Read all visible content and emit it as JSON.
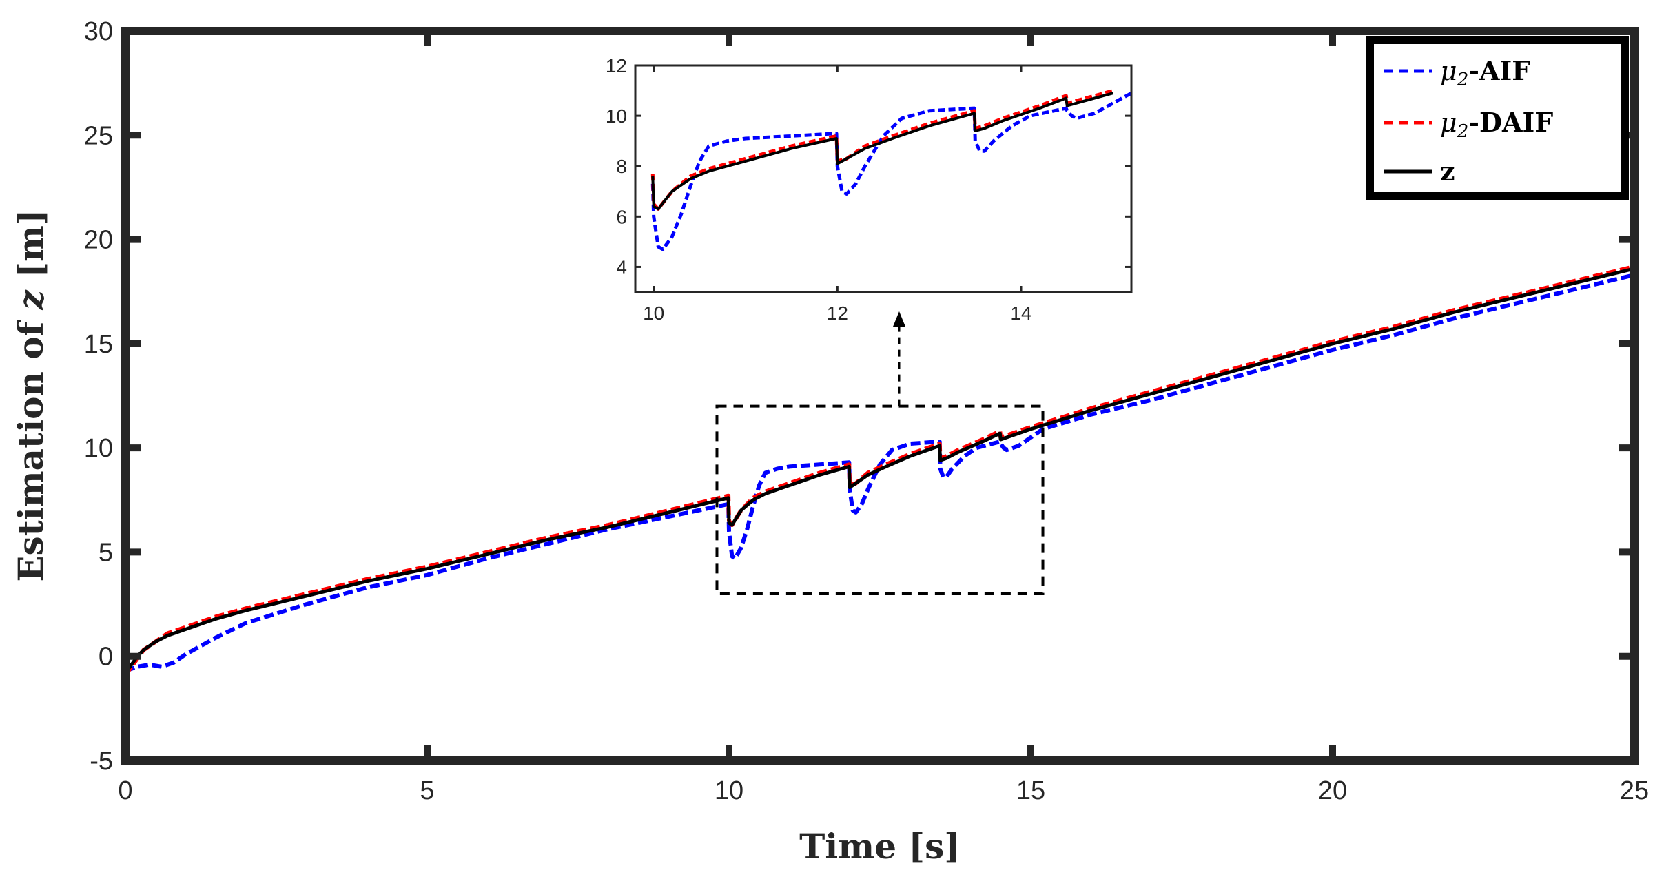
{
  "chart_data": {
    "type": "line",
    "title": "",
    "xlabel": "Time [s]",
    "ylabel_prefix": "Estimation of ",
    "ylabel_var": "z",
    "ylabel_suffix": " [m]",
    "xlim": [
      0,
      25
    ],
    "ylim": [
      -5,
      30
    ],
    "xticks": [
      "0",
      "5",
      "10",
      "15",
      "20",
      "25"
    ],
    "yticks": [
      "-5",
      "0",
      "5",
      "10",
      "15",
      "20",
      "25",
      "30"
    ],
    "grid": false,
    "legend": {
      "placement": "top-right",
      "entries": [
        {
          "sym": "μ",
          "sub": "2",
          "text": "-AIF"
        },
        {
          "sym": "μ",
          "sub": "2",
          "text": "-DAIF"
        },
        {
          "sym": "",
          "sub": "",
          "text": "z"
        }
      ]
    },
    "colors": {
      "aif": "#0000ff",
      "daif": "#ff0000",
      "z": "#000000",
      "axis": "#262626"
    },
    "series": [
      {
        "name": "μ2-AIF",
        "style": "dashed",
        "x": [
          0,
          0.2,
          0.4,
          0.6,
          0.8,
          1.0,
          1.5,
          2.0,
          3.0,
          4.0,
          5.0,
          6.0,
          7.0,
          8.0,
          9.0,
          9.99,
          10.0,
          10.05,
          10.1,
          10.2,
          10.3,
          10.4,
          10.5,
          10.6,
          10.8,
          11.0,
          11.5,
          11.99,
          12.0,
          12.05,
          12.1,
          12.2,
          12.3,
          12.5,
          12.7,
          13.0,
          13.49,
          13.5,
          13.55,
          13.6,
          13.7,
          13.9,
          14.1,
          14.49,
          14.5,
          14.55,
          14.6,
          14.8,
          15.0,
          15.2,
          16,
          17,
          18,
          19,
          20,
          21,
          22,
          23,
          24,
          25
        ],
        "y": [
          -0.7,
          -0.5,
          -0.4,
          -0.5,
          -0.3,
          0.1,
          0.9,
          1.6,
          2.5,
          3.3,
          3.9,
          4.7,
          5.4,
          6.1,
          6.7,
          7.3,
          6.0,
          4.8,
          4.7,
          5.2,
          6.1,
          7.2,
          8.2,
          8.8,
          9.0,
          9.1,
          9.2,
          9.3,
          8.0,
          7.0,
          6.9,
          7.3,
          8.0,
          9.2,
          9.9,
          10.2,
          10.3,
          9.0,
          8.6,
          8.6,
          9.0,
          9.6,
          10.0,
          10.3,
          10.2,
          10.0,
          9.9,
          10.1,
          10.5,
          10.9,
          11.6,
          12.3,
          13.1,
          13.9,
          14.7,
          15.4,
          16.2,
          16.9,
          17.6,
          18.3
        ]
      },
      {
        "name": "μ2-DAIF",
        "style": "dashed",
        "x": [
          0,
          0.1,
          0.2,
          0.3,
          0.5,
          0.7,
          1.0,
          1.5,
          2.0,
          3.0,
          4.0,
          5.0,
          6.0,
          7.0,
          8.0,
          9.0,
          9.99,
          10.0,
          10.05,
          10.2,
          10.4,
          10.6,
          11.0,
          11.5,
          11.99,
          12.0,
          12.1,
          12.3,
          12.6,
          13.0,
          13.49,
          13.5,
          13.6,
          13.8,
          14.2,
          14.49,
          14.5,
          14.6,
          15.0,
          16,
          17,
          18,
          19,
          20,
          21,
          22,
          23,
          24,
          25
        ],
        "y": [
          -0.9,
          -0.5,
          -0.1,
          0.3,
          0.7,
          1.1,
          1.4,
          1.9,
          2.3,
          3.0,
          3.7,
          4.3,
          5.0,
          5.7,
          6.3,
          7.0,
          7.7,
          6.5,
          6.3,
          7.0,
          7.6,
          7.9,
          8.3,
          8.8,
          9.2,
          8.2,
          8.3,
          8.8,
          9.2,
          9.7,
          10.2,
          9.5,
          9.6,
          9.9,
          10.4,
          10.8,
          10.5,
          10.6,
          11.0,
          11.9,
          12.7,
          13.5,
          14.3,
          15.1,
          15.8,
          16.6,
          17.3,
          18.0,
          18.7
        ]
      },
      {
        "name": "z",
        "style": "solid",
        "x": [
          0,
          0.1,
          0.2,
          0.3,
          0.5,
          0.7,
          1.0,
          1.5,
          2.0,
          3.0,
          4.0,
          5.0,
          6.0,
          7.0,
          8.0,
          9.0,
          9.99,
          10.0,
          10.05,
          10.2,
          10.4,
          10.6,
          11.0,
          11.5,
          11.99,
          12.0,
          12.1,
          12.3,
          12.6,
          13.0,
          13.49,
          13.5,
          13.6,
          13.8,
          14.2,
          14.49,
          14.5,
          14.6,
          15.0,
          16,
          17,
          18,
          19,
          20,
          21,
          22,
          23,
          24,
          25
        ],
        "y": [
          -0.8,
          -0.4,
          0.0,
          0.3,
          0.7,
          1.0,
          1.3,
          1.8,
          2.2,
          2.9,
          3.6,
          4.2,
          4.9,
          5.6,
          6.2,
          6.9,
          7.6,
          6.4,
          6.3,
          7.0,
          7.5,
          7.8,
          8.2,
          8.7,
          9.1,
          8.1,
          8.3,
          8.7,
          9.1,
          9.6,
          10.1,
          9.4,
          9.5,
          9.8,
          10.3,
          10.7,
          10.4,
          10.5,
          10.9,
          11.8,
          12.6,
          13.4,
          14.2,
          15.0,
          15.7,
          16.5,
          17.2,
          17.9,
          18.6
        ]
      }
    ],
    "zoom_box": {
      "xlim": [
        9.8,
        15.2
      ],
      "ylim": [
        3,
        12
      ]
    },
    "inset": {
      "xlim": [
        9.8,
        15.2
      ],
      "ylim": [
        3,
        12
      ],
      "xticks": [
        "10",
        "12",
        "14"
      ],
      "yticks": [
        "4",
        "6",
        "8",
        "10",
        "12"
      ]
    }
  }
}
